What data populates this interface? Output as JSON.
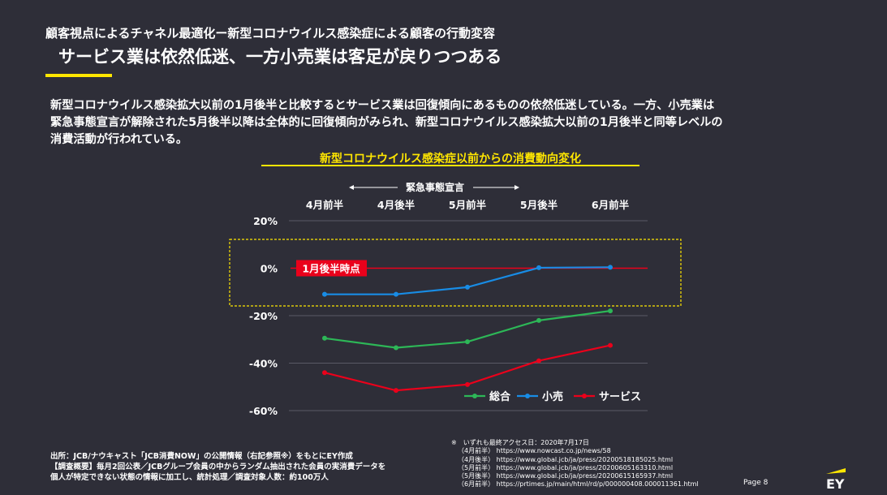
{
  "header": {
    "title": "顧客視点によるチャネル最適化ー新型コロナウイルス感染症による顧客の行動変容",
    "subtitle": "サービス業は依然低迷、一方小売業は客足が戻りつつある"
  },
  "body": {
    "paragraph_lines": [
      "新型コロナウイルス感染拡大以前の1月後半と比較するとサービス業は回復傾向にあるものの依然低迷している。一方、小売業は",
      "緊急事態宣言が解除された5月後半以降は全体的に回復傾向がみられ、新型コロナウイルス感染拡大以前の1月後半と同等レベルの",
      "消費活動が行われている。"
    ]
  },
  "chart_data": {
    "type": "line",
    "title": "新型コロナウイルス感染症以前からの消費動向変化",
    "categories": [
      "4月前半",
      "4月後半",
      "5月前半",
      "5月後半",
      "6月前半"
    ],
    "ylim": [
      -60,
      20
    ],
    "yticks": [
      20,
      0,
      -20,
      -40,
      -60
    ],
    "ytick_labels": [
      "20%",
      "0%",
      "-20%",
      "-40%",
      "-60%"
    ],
    "grid": true,
    "baseline_label": "1月後半時点",
    "period_annotation": "緊急事態宣言",
    "legend_position": "bottom-right",
    "series": [
      {
        "name": "総合",
        "color": "#2db757",
        "values": [
          -29.5,
          -33.5,
          -31,
          -22,
          -18
        ]
      },
      {
        "name": "小売",
        "color": "#188ce5",
        "values": [
          -11,
          -11,
          -8,
          0.2,
          0.4
        ]
      },
      {
        "name": "サービス",
        "color": "#ea011b",
        "values": [
          -44,
          -51.5,
          -49,
          -39,
          -32.5
        ]
      }
    ],
    "colors": {
      "baseline": "#ea011b",
      "highlight_box": "#ffe600",
      "grid": "#5a5a66",
      "title": "#ffe600"
    }
  },
  "footer": {
    "source_lines": [
      "出所：JCB/ナウキャスト「JCB消費NOW」の公開情報（右記参照※）をもとにEY作成",
      "【調査概要】毎月2回公表／JCBグループ会員の中からランダム抽出された会員の実消費データを",
      "個人が特定できない状態の情報に加工し、統計処理／調査対象人数：約100万人"
    ],
    "access_title": "※　いずれも最終アクセス日：2020年7月17日",
    "access_lines": [
      "（4月前半）  https://www.nowcast.co.jp/news/58",
      "（4月後半）  https://www.global.jcb/ja/press/20200518185025.html",
      "（5月前半）  https://www.global.jcb/ja/press/20200605163310.html",
      "（5月後半）  https://www.global.jcb/ja/press/20200615165937.html",
      "（6月前半）  https://prtimes.jp/main/html/rd/p/000000408.000011361.html"
    ],
    "page_label": "Page 8",
    "logo_text": "EY"
  }
}
